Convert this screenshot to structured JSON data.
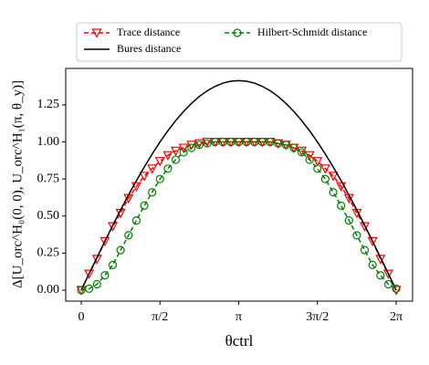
{
  "chart_data": {
    "type": "line",
    "x_label": "θctrl",
    "y_label": "Δ[U_orc^H₀(0, 0), U_orc^H₁(π, θ_y)]",
    "x": [
      0,
      0.157,
      0.314,
      0.471,
      0.628,
      0.785,
      0.942,
      1.1,
      1.257,
      1.414,
      1.571,
      1.728,
      1.885,
      2.042,
      2.199,
      2.356,
      2.513,
      2.67,
      2.827,
      2.985,
      3.142,
      3.299,
      3.456,
      3.613,
      3.77,
      3.927,
      4.084,
      4.241,
      4.398,
      4.555,
      4.712,
      4.869,
      5.027,
      5.184,
      5.341,
      5.498,
      5.655,
      5.812,
      5.969,
      6.126,
      6.283
    ],
    "series": [
      {
        "name": "Trace distance",
        "color": "#ff0000",
        "marker": "triangle",
        "dashed": true,
        "values": [
          0,
          0.11,
          0.21,
          0.33,
          0.43,
          0.52,
          0.62,
          0.7,
          0.77,
          0.82,
          0.87,
          0.91,
          0.94,
          0.96,
          0.98,
          0.99,
          1.0,
          1.0,
          1.0,
          1.0,
          1.0,
          1.0,
          1.0,
          1.0,
          1.0,
          0.99,
          0.98,
          0.96,
          0.94,
          0.91,
          0.87,
          0.82,
          0.77,
          0.7,
          0.62,
          0.52,
          0.43,
          0.33,
          0.21,
          0.11,
          0
        ]
      },
      {
        "name": "Bures distance",
        "color": "#000000",
        "marker": "none",
        "dashed": false,
        "values": [
          0,
          0.111,
          0.221,
          0.33,
          0.437,
          0.541,
          0.642,
          0.739,
          0.831,
          0.918,
          1.0,
          1.075,
          1.144,
          1.206,
          1.26,
          1.307,
          1.345,
          1.375,
          1.397,
          1.41,
          1.414,
          1.41,
          1.397,
          1.375,
          1.345,
          1.307,
          1.26,
          1.206,
          1.144,
          1.075,
          1.0,
          0.918,
          0.831,
          0.739,
          0.642,
          0.541,
          0.437,
          0.33,
          0.221,
          0.111,
          0
        ]
      },
      {
        "name": "Hilbert-Schmidt distance",
        "color": "#008000",
        "marker": "circle",
        "dashed": true,
        "values": [
          0,
          0.01,
          0.04,
          0.1,
          0.17,
          0.27,
          0.37,
          0.47,
          0.57,
          0.66,
          0.75,
          0.82,
          0.88,
          0.93,
          0.96,
          0.98,
          0.99,
          1.0,
          1.0,
          1.0,
          1.0,
          1.0,
          1.0,
          1.0,
          1.0,
          0.99,
          0.98,
          0.96,
          0.93,
          0.88,
          0.82,
          0.75,
          0.66,
          0.57,
          0.47,
          0.37,
          0.27,
          0.17,
          0.1,
          0.04,
          0.01
        ]
      }
    ],
    "xlim": [
      -0.31,
      6.61
    ],
    "ylim": [
      -0.074,
      1.496
    ],
    "xticks": [
      0,
      {
        "value": 1.5708,
        "label": "π/2"
      },
      {
        "value": 3.1416,
        "label": "π"
      },
      {
        "value": 4.7124,
        "label": "3π/2"
      },
      {
        "value": 6.2832,
        "label": "2π"
      }
    ],
    "yticks": [
      {
        "value": 0,
        "label": "0.00"
      },
      0.25,
      {
        "value": 0.5,
        "label": "0.50"
      },
      0.75,
      {
        "value": 1.0,
        "label": "1.00"
      },
      1.25
    ],
    "grid": false,
    "legend": "top"
  }
}
